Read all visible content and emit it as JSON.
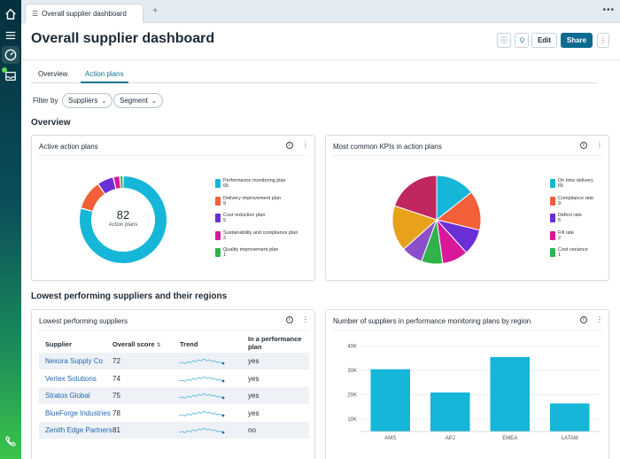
{
  "tab": {
    "title": "Overall supplier dashboard"
  },
  "header": {
    "title": "Overall supplier dashboard",
    "edit_label": "Edit",
    "share_label": "Share"
  },
  "subtabs": [
    "Overview",
    "Action plans"
  ],
  "filter": {
    "label": "Filter by",
    "chips": [
      "Suppliers",
      "Segment"
    ]
  },
  "sections": {
    "overview": "Overview",
    "lowest": "Lowest performing suppliers and their regions"
  },
  "cards": {
    "active": {
      "title": "Active action plans",
      "total": "82",
      "total_label": "Action plans",
      "legend": [
        {
          "name": "Performance monitoring plan",
          "value": "65",
          "color": "#16b6d8"
        },
        {
          "name": "Delivery improvement plan",
          "value": "9",
          "color": "#f25f38"
        },
        {
          "name": "Cost reduction plan",
          "value": "5",
          "color": "#6a2fd6"
        },
        {
          "name": "Sustainability and compliance plan",
          "value": "2",
          "color": "#d9179b"
        },
        {
          "name": "Quality improvement plan",
          "value": "1",
          "color": "#2fb34a"
        }
      ]
    },
    "kpis": {
      "title": "Most common KPIs in action plans",
      "legend": [
        {
          "name": "On time delivery",
          "value": "65",
          "color": "#16b6d8"
        },
        {
          "name": "Compliance rate",
          "value": "9",
          "color": "#f25f38"
        },
        {
          "name": "Defect rate",
          "value": "5",
          "color": "#6a2fd6"
        },
        {
          "name": "Fill rate",
          "value": "2",
          "color": "#d9179b"
        },
        {
          "name": "Cost variance",
          "value": "1",
          "color": "#2fb34a"
        }
      ]
    },
    "lowest": {
      "title": "Lowest performing suppliers",
      "columns": [
        "Supplier",
        "Overall score",
        "Trend",
        "In a performance plan"
      ],
      "rows": [
        {
          "supplier": "Nexora Supply Co",
          "score": "72",
          "in_plan": "yes"
        },
        {
          "supplier": "Vertex Solutions",
          "score": "74",
          "in_plan": "yes"
        },
        {
          "supplier": "Stratos Global",
          "score": "75",
          "in_plan": "yes"
        },
        {
          "supplier": "BlueForge Industries",
          "score": "78",
          "in_plan": "yes"
        },
        {
          "supplier": "Zenith Edge Partners",
          "score": "81",
          "in_plan": "no"
        }
      ]
    },
    "region": {
      "title": "Number of suppliers in performance monitoring plans by region"
    }
  },
  "chart_data": [
    {
      "type": "pie",
      "title": "Active action plans",
      "variant": "donut",
      "categories": [
        "Performance monitoring plan",
        "Delivery improvement plan",
        "Cost reduction plan",
        "Sustainability and compliance plan",
        "Quality improvement plan"
      ],
      "values": [
        65,
        9,
        5,
        2,
        1
      ]
    },
    {
      "type": "pie",
      "title": "Most common KPIs in action plans",
      "note": "Slice sizes as drawn; more slices are drawn than legend entries",
      "slices": [
        {
          "value": 14.4,
          "color": "#16b6d8"
        },
        {
          "value": 14.4,
          "color": "#f25f38"
        },
        {
          "value": 9.5,
          "color": "#6a2fd6"
        },
        {
          "value": 9.5,
          "color": "#d9179b"
        },
        {
          "value": 7.8,
          "color": "#2fb34a"
        },
        {
          "value": 7.8,
          "color": "#8a4fc9"
        },
        {
          "value": 16.7,
          "color": "#e8a11a"
        },
        {
          "value": 19.9,
          "color": "#c0265f"
        }
      ]
    },
    {
      "type": "bar",
      "title": "Number of suppliers in performance monitoring plans by region",
      "categories": [
        "AMS",
        "APJ",
        "EMEA",
        "LATAM"
      ],
      "values": [
        30500,
        21000,
        35500,
        16500
      ],
      "ylim": [
        5000,
        42000
      ],
      "yticks": [
        "10K",
        "20K",
        "30K",
        "40K"
      ],
      "ytick_values": [
        10000,
        20000,
        30000,
        40000
      ],
      "color": "#16b6d8"
    }
  ]
}
